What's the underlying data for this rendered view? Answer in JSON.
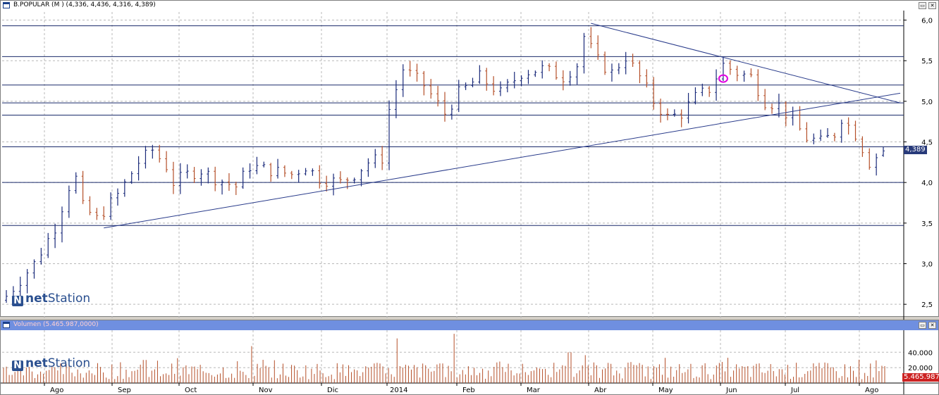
{
  "price_pane": {
    "title": "B.POPULAR (M ) (4,336, 4,436, 4,316, 4,389)",
    "last_price": "4,389",
    "y_ticks": [
      "6,0",
      "5,5",
      "5,0",
      "4,5",
      "4,0",
      "3,5",
      "3,0",
      "2,5"
    ],
    "logo_text_bold": "net",
    "logo_text": "Station"
  },
  "volume_pane": {
    "title": "Volumen (5.465.987,0000)",
    "last_volume": "5.465.987",
    "y_ticks": [
      "40.000",
      "20.000"
    ],
    "logo_text_bold": "net",
    "logo_text": "Station"
  },
  "x_axis": {
    "months": [
      "Ago",
      "Sep",
      "Oct",
      "Nov",
      "Dic",
      "2014",
      "Feb",
      "Mar",
      "Abr",
      "May",
      "Jun",
      "Jul",
      "Ago"
    ]
  },
  "colors": {
    "up_bar": "#1a2a7a",
    "down_bar": "#b5502a",
    "trend_line": "#283a8a",
    "level_line": "#1a2a6a",
    "last_badge": "#283a7a",
    "volume_badge": "#cc2222",
    "volume_bar": "#b5502a",
    "pane_title_bg": "#6f8fe0",
    "marker": "#e000e0"
  },
  "chart_data": [
    {
      "type": "ohlc",
      "title": "B.POPULAR (M )",
      "x": [
        "Ago",
        "Sep",
        "Oct",
        "Nov",
        "Dic",
        "2014",
        "Feb",
        "Mar",
        "Abr",
        "May",
        "Jun",
        "Jul",
        "Ago"
      ],
      "ylim": [
        2.25,
        6.1
      ],
      "last": {
        "open": 4.336,
        "high": 4.436,
        "low": 4.316,
        "close": 4.389
      },
      "close_path": [
        [
          0,
          2.6
        ],
        [
          4,
          3.0
        ],
        [
          7,
          3.45
        ],
        [
          9,
          3.95
        ],
        [
          10,
          4.05
        ],
        [
          11,
          3.7
        ],
        [
          13,
          3.55
        ],
        [
          16,
          3.85
        ],
        [
          19,
          4.25
        ],
        [
          21,
          4.4
        ],
        [
          23,
          4.2
        ],
        [
          24,
          4.0
        ],
        [
          26,
          4.1
        ],
        [
          28,
          4.15
        ],
        [
          30,
          4.05
        ],
        [
          33,
          3.95
        ],
        [
          35,
          4.2
        ],
        [
          38,
          4.15
        ],
        [
          41,
          4.1
        ],
        [
          43,
          4.2
        ],
        [
          45,
          4.05
        ],
        [
          48,
          4.0
        ],
        [
          50,
          4.1
        ],
        [
          52,
          4.25
        ],
        [
          54,
          4.3
        ],
        [
          55,
          4.9
        ],
        [
          57,
          5.4
        ],
        [
          60,
          5.2
        ],
        [
          63,
          4.85
        ],
        [
          65,
          5.1
        ],
        [
          68,
          5.3
        ],
        [
          71,
          5.1
        ],
        [
          74,
          5.35
        ],
        [
          77,
          5.4
        ],
        [
          80,
          5.3
        ],
        [
          82,
          5.45
        ],
        [
          83,
          5.8
        ],
        [
          85,
          5.5
        ],
        [
          87,
          5.35
        ],
        [
          89,
          5.55
        ],
        [
          91,
          5.3
        ],
        [
          93,
          5.0
        ],
        [
          95,
          4.8
        ],
        [
          97,
          4.85
        ],
        [
          99,
          5.05
        ],
        [
          101,
          5.15
        ],
        [
          103,
          5.45
        ],
        [
          105,
          5.35
        ],
        [
          107,
          5.3
        ],
        [
          109,
          5.0
        ],
        [
          111,
          4.95
        ],
        [
          113,
          4.75
        ],
        [
          115,
          4.55
        ],
        [
          117,
          4.5
        ],
        [
          119,
          4.6
        ],
        [
          120,
          4.8
        ],
        [
          122,
          4.6
        ],
        [
          124,
          4.25
        ],
        [
          126,
          4.389
        ]
      ],
      "horizontal_levels": [
        5.93,
        5.55,
        5.2,
        4.98,
        4.83,
        4.44,
        4.0,
        3.47
      ],
      "trend_lines": [
        {
          "from": [
            14,
            3.44
          ],
          "to": [
            "end",
            5.1
          ]
        },
        {
          "from": [
            84,
            5.96
          ],
          "to": [
            "end",
            4.98
          ]
        }
      ]
    },
    {
      "type": "bar",
      "title": "Volumen",
      "ylim": [
        0,
        65000
      ],
      "last": 5465987,
      "notable_peaks": [
        {
          "at": "2014",
          "value": 58000
        },
        {
          "at": "Feb",
          "value": 64000
        },
        {
          "at": "Nov",
          "value": 48000
        }
      ]
    }
  ]
}
